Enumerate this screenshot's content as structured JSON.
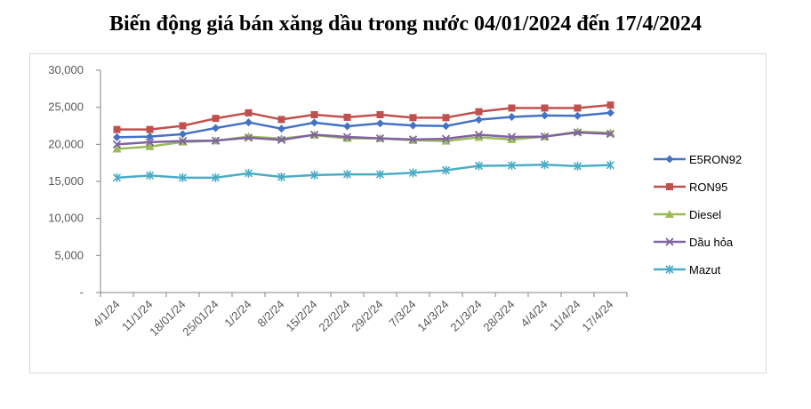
{
  "chart_data": {
    "type": "line",
    "title": "Biến động giá bán xăng dầu trong nước 04/01/2024 đến 17/4/2024",
    "xlabel": "",
    "ylabel": "",
    "ylim": [
      0,
      30000
    ],
    "y_ticks": [
      "-",
      "5,000",
      "10,000",
      "15,000",
      "20,000",
      "25,000",
      "30,000"
    ],
    "legend_position": "right",
    "grid": false,
    "categories": [
      "4/1/24",
      "11/1/24",
      "18/01/24",
      "25/01/24",
      "1/2/24",
      "8/2/24",
      "15/2/24",
      "22/2/24",
      "29/2/24",
      "7/3/24",
      "14/3/24",
      "21/3/24",
      "28/3/24",
      "4/4/24",
      "11/4/24",
      "17/4/24"
    ],
    "series": [
      {
        "name": "E5RON92",
        "color": "#4472c4",
        "marker": "diamond",
        "values": [
          20950,
          21050,
          21370,
          22200,
          22970,
          22110,
          22930,
          22440,
          22830,
          22550,
          22470,
          23320,
          23700,
          23900,
          23850,
          24250
        ]
      },
      {
        "name": "RON95",
        "color": "#c0504d",
        "marker": "square",
        "values": [
          22000,
          22000,
          22500,
          23500,
          24250,
          23350,
          24000,
          23650,
          24000,
          23600,
          23600,
          24400,
          24900,
          24900,
          24900,
          25300
        ]
      },
      {
        "name": "Diesel",
        "color": "#9bbb59",
        "marker": "triangle",
        "values": [
          19380,
          19700,
          20320,
          20480,
          21050,
          20770,
          21250,
          20800,
          20800,
          20550,
          20450,
          20950,
          20650,
          21050,
          21700,
          21550
        ]
      },
      {
        "name": "Dầu hỏa",
        "color": "#8064a2",
        "marker": "x",
        "values": [
          20000,
          20300,
          20450,
          20500,
          20900,
          20600,
          21300,
          21000,
          20800,
          20650,
          20750,
          21300,
          21000,
          21050,
          21600,
          21400
        ]
      },
      {
        "name": "Mazut",
        "color": "#4bacc6",
        "marker": "star",
        "values": [
          15500,
          15800,
          15500,
          15500,
          16100,
          15600,
          15850,
          15950,
          15950,
          16150,
          16500,
          17100,
          17150,
          17250,
          17050,
          17200
        ]
      }
    ]
  }
}
